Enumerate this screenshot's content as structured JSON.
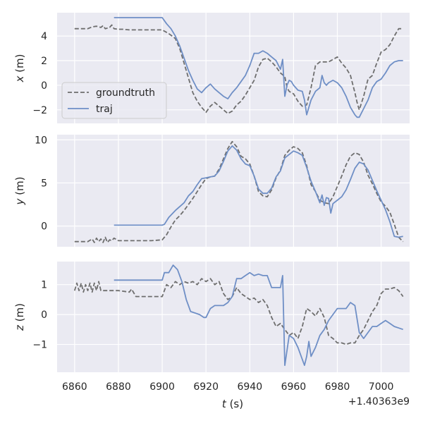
{
  "chart_data": {
    "type": "line",
    "x_offset_label": "+1.40363e9",
    "x_ticks": [
      "6860",
      "6880",
      "6900",
      "6920",
      "6940",
      "6960",
      "6980",
      "7000"
    ],
    "xlabel_var": "t",
    "xlabel_unit": " (s)",
    "legend": {
      "placement": "lower-left of top panel",
      "entries": [
        {
          "label": "groundtruth",
          "series": "groundtruth"
        },
        {
          "label": "traj",
          "series": "traj"
        }
      ]
    },
    "colors": {
      "groundtruth": "#6e6e6e",
      "traj": "#6f8fc6",
      "background": "#eaeaf2",
      "grid": "#ffffff"
    },
    "xlim": [
      6852,
      7013
    ],
    "panels": [
      {
        "ylabel_var": "x",
        "ylabel_unit": " (m)",
        "ylim": [
          -3.1,
          5.9
        ],
        "y_ticks": [
          4,
          2,
          0,
          -2
        ],
        "y_tick_labels": [
          "4",
          "2",
          "0",
          "−2"
        ],
        "series": [
          {
            "name": "groundtruth",
            "style": "dashed",
            "x": [
              6860,
              6866,
              6868,
              6870,
              6872,
              6873,
              6874,
              6876,
              6877,
              6878,
              6880,
              6882,
              6885,
              6890,
              6895,
              6900,
              6903,
              6906,
              6908,
              6910,
              6912,
              6914,
              6916,
              6918,
              6920,
              6922,
              6924,
              6926,
              6928,
              6930,
              6932,
              6934,
              6936,
              6938,
              6940,
              6942,
              6944,
              6946,
              6948,
              6950,
              6952,
              6954,
              6956,
              6957,
              6958,
              6960,
              6962,
              6964,
              6966,
              6968,
              6970,
              6972,
              6974,
              6976,
              6978,
              6980,
              6982,
              6984,
              6986,
              6988,
              6989,
              6990,
              6992,
              6994,
              6996,
              6998,
              7000,
              7002,
              7004,
              7006,
              7008,
              7010
            ],
            "y": [
              4.6,
              4.6,
              4.75,
              4.8,
              4.7,
              4.85,
              4.6,
              4.7,
              4.9,
              4.6,
              4.55,
              4.55,
              4.5,
              4.5,
              4.5,
              4.5,
              4.2,
              3.8,
              3.0,
              1.8,
              0.6,
              -0.6,
              -1.3,
              -1.8,
              -2.2,
              -1.7,
              -1.4,
              -1.7,
              -2.0,
              -2.3,
              -2.1,
              -1.6,
              -1.3,
              -0.8,
              -0.2,
              0.4,
              1.5,
              2.1,
              2.2,
              1.9,
              1.5,
              1.0,
              0.7,
              -0.2,
              -0.5,
              -0.7,
              -1.3,
              -1.7,
              -1.6,
              -0.2,
              1.6,
              1.9,
              1.9,
              1.9,
              2.1,
              2.3,
              1.8,
              1.4,
              0.8,
              -0.6,
              -1.4,
              -2.0,
              -0.9,
              0.5,
              0.8,
              1.8,
              2.7,
              2.9,
              3.3,
              4.0,
              4.6,
              4.6
            ]
          },
          {
            "name": "traj",
            "style": "solid",
            "x": [
              6878,
              6890,
              6900,
              6902,
              6904,
              6906,
              6908,
              6910,
              6912,
              6914,
              6916,
              6918,
              6920,
              6922,
              6924,
              6926,
              6928,
              6930,
              6932,
              6934,
              6936,
              6938,
              6940,
              6942,
              6944,
              6946,
              6948,
              6950,
              6952,
              6954,
              6955,
              6956,
              6957,
              6958,
              6959,
              6960,
              6962,
              6964,
              6965,
              6966,
              6967,
              6968,
              6970,
              6972,
              6973,
              6974,
              6975,
              6976,
              6978,
              6980,
              6982,
              6984,
              6986,
              6988,
              6989,
              6990,
              6992,
              6994,
              6996,
              6998,
              7000,
              7002,
              7004,
              7006,
              7008,
              7010
            ],
            "y": [
              5.5,
              5.5,
              5.5,
              5.0,
              4.6,
              4.0,
              3.2,
              2.2,
              1.2,
              0.4,
              -0.3,
              -0.6,
              -0.2,
              0.1,
              -0.3,
              -0.6,
              -0.9,
              -1.1,
              -0.6,
              -0.2,
              0.3,
              0.8,
              1.6,
              2.6,
              2.6,
              2.8,
              2.6,
              2.3,
              2.0,
              1.3,
              2.1,
              -0.9,
              0.0,
              0.4,
              0.3,
              0.0,
              -0.4,
              -0.5,
              -1.2,
              -2.4,
              -1.8,
              -1.2,
              -0.5,
              -0.2,
              0.8,
              0.2,
              0.0,
              0.2,
              0.4,
              0.2,
              -0.2,
              -0.9,
              -1.8,
              -2.4,
              -2.6,
              -2.6,
              -1.9,
              -1.2,
              -0.2,
              0.3,
              0.5,
              1.0,
              1.6,
              1.9,
              2.0,
              2.0
            ]
          }
        ]
      },
      {
        "ylabel_var": "y",
        "ylabel_unit": " (m)",
        "ylim": [
          -2.4,
          10.6
        ],
        "y_ticks": [
          10,
          5,
          0
        ],
        "y_tick_labels": [
          "10",
          "5",
          "0"
        ],
        "series": [
          {
            "name": "groundtruth",
            "style": "dashed",
            "x": [
              6860,
              6866,
              6868,
              6869,
              6870,
              6871,
              6872,
              6873,
              6874,
              6875,
              6876,
              6877,
              6878,
              6880,
              6885,
              6890,
              6895,
              6900,
              6902,
              6904,
              6906,
              6908,
              6910,
              6912,
              6914,
              6916,
              6918,
              6920,
              6922,
              6924,
              6926,
              6928,
              6930,
              6932,
              6934,
              6936,
              6938,
              6940,
              6942,
              6944,
              6946,
              6948,
              6950,
              6952,
              6954,
              6956,
              6958,
              6960,
              6962,
              6964,
              6966,
              6968,
              6970,
              6972,
              6974,
              6976,
              6978,
              6980,
              6982,
              6984,
              6986,
              6988,
              6990,
              6992,
              6994,
              6996,
              6998,
              7000,
              7002,
              7004,
              7006,
              7008,
              7010
            ],
            "y": [
              -1.8,
              -1.8,
              -1.5,
              -1.9,
              -1.4,
              -1.8,
              -1.5,
              -1.9,
              -1.3,
              -1.9,
              -1.6,
              -1.7,
              -1.4,
              -1.7,
              -1.7,
              -1.7,
              -1.7,
              -1.6,
              -1.0,
              -0.1,
              0.7,
              1.2,
              1.8,
              2.5,
              3.2,
              4.0,
              4.8,
              5.5,
              5.7,
              5.8,
              6.6,
              7.8,
              9.0,
              9.8,
              9.2,
              8.1,
              7.8,
              7.2,
              5.8,
              4.0,
              3.5,
              3.4,
              4.2,
              5.6,
              6.5,
              8.2,
              8.8,
              9.2,
              9.0,
              8.5,
              7.0,
              4.8,
              4.0,
              3.0,
              2.7,
              2.6,
              3.4,
              4.6,
              5.8,
              7.1,
              8.1,
              8.5,
              8.3,
              7.4,
              5.9,
              4.9,
              3.8,
              2.8,
              2.3,
              1.6,
              0.2,
              -1.3,
              -1.8
            ]
          },
          {
            "name": "traj",
            "style": "solid",
            "x": [
              6878,
              6890,
              6900,
              6901,
              6903,
              6906,
              6910,
              6912,
              6914,
              6916,
              6918,
              6920,
              6922,
              6924,
              6926,
              6928,
              6930,
              6932,
              6934,
              6936,
              6938,
              6940,
              6942,
              6944,
              6946,
              6948,
              6950,
              6952,
              6954,
              6956,
              6958,
              6960,
              6962,
              6964,
              6966,
              6968,
              6970,
              6972,
              6973,
              6974,
              6975,
              6976,
              6977,
              6978,
              6980,
              6982,
              6984,
              6986,
              6988,
              6990,
              6992,
              6994,
              6996,
              6998,
              7000,
              7002,
              7004,
              7006,
              7008,
              7010
            ],
            "y": [
              0.1,
              0.1,
              0.1,
              0.2,
              1.0,
              1.8,
              2.7,
              3.5,
              4.0,
              4.8,
              5.5,
              5.6,
              5.7,
              5.8,
              6.4,
              7.5,
              8.7,
              9.3,
              8.8,
              7.8,
              7.2,
              7.0,
              5.8,
              4.3,
              3.8,
              3.8,
              4.4,
              5.7,
              6.4,
              7.9,
              8.3,
              8.7,
              8.5,
              8.2,
              6.8,
              5.2,
              4.0,
              2.7,
              3.6,
              2.4,
              3.3,
              3.2,
              1.5,
              2.6,
              3.0,
              3.4,
              4.2,
              5.4,
              6.7,
              7.4,
              7.2,
              6.5,
              5.3,
              4.1,
              3.0,
              1.9,
              0.5,
              -1.2,
              -1.3,
              -1.2
            ]
          }
        ]
      },
      {
        "ylabel_var": "z",
        "ylabel_unit": " (m)",
        "ylim": [
          -1.93,
          1.77
        ],
        "y_ticks": [
          1,
          0,
          -1
        ],
        "y_tick_labels": [
          "1",
          "0",
          "−1"
        ],
        "series": [
          {
            "name": "groundtruth",
            "style": "dashed",
            "x": [
              6860,
              6861,
              6862,
              6863,
              6864,
              6865,
              6866,
              6867,
              6868,
              6869,
              6870,
              6871,
              6872,
              6875,
              6880,
              6885,
              6886,
              6888,
              6890,
              6895,
              6900,
              6902,
              6904,
              6906,
              6908,
              6910,
              6912,
              6914,
              6916,
              6918,
              6920,
              6922,
              6924,
              6926,
              6928,
              6930,
              6932,
              6934,
              6936,
              6938,
              6940,
              6942,
              6944,
              6946,
              6948,
              6950,
              6952,
              6954,
              6956,
              6958,
              6960,
              6962,
              6964,
              6966,
              6968,
              6970,
              6972,
              6974,
              6976,
              6978,
              6980,
              6982,
              6984,
              6986,
              6988,
              6990,
              6992,
              6994,
              6996,
              6998,
              7000,
              7002,
              7004,
              7006,
              7008,
              7010
            ],
            "y": [
              0.8,
              1.05,
              0.8,
              1.05,
              0.75,
              1.0,
              0.8,
              1.05,
              0.75,
              1.05,
              0.8,
              1.1,
              0.8,
              0.8,
              0.8,
              0.75,
              0.85,
              0.6,
              0.6,
              0.6,
              0.6,
              1.0,
              0.9,
              1.1,
              1.0,
              1.1,
              1.05,
              1.1,
              1.0,
              1.2,
              1.1,
              1.2,
              1.0,
              1.1,
              0.7,
              0.5,
              0.6,
              0.9,
              0.7,
              0.6,
              0.5,
              0.55,
              0.4,
              0.5,
              0.3,
              -0.1,
              -0.4,
              -0.3,
              -0.5,
              -0.7,
              -0.6,
              -0.8,
              -0.4,
              0.2,
              0.1,
              -0.05,
              0.2,
              -0.1,
              -0.7,
              -0.8,
              -0.95,
              -0.95,
              -1.0,
              -0.95,
              -0.95,
              -0.7,
              -0.5,
              -0.2,
              0.1,
              0.3,
              0.7,
              0.85,
              0.85,
              0.9,
              0.8,
              0.6
            ]
          },
          {
            "name": "traj",
            "style": "solid",
            "x": [
              6878,
              6890,
              6900,
              6901,
              6903,
              6905,
              6907,
              6909,
              6911,
              6913,
              6915,
              6917,
              6919,
              6920,
              6922,
              6924,
              6926,
              6928,
              6930,
              6932,
              6934,
              6936,
              6938,
              6940,
              6942,
              6944,
              6946,
              6948,
              6950,
              6952,
              6954,
              6955,
              6956,
              6957,
              6958,
              6960,
              6962,
              6964,
              6965,
              6966,
              6967,
              6968,
              6970,
              6972,
              6974,
              6976,
              6978,
              6980,
              6982,
              6984,
              6986,
              6988,
              6990,
              6992,
              6994,
              6996,
              6998,
              7000,
              7002,
              7004,
              7006,
              7008,
              7010
            ],
            "y": [
              1.15,
              1.15,
              1.15,
              1.4,
              1.4,
              1.65,
              1.5,
              1.1,
              0.5,
              0.1,
              0.05,
              0.0,
              -0.1,
              -0.1,
              0.2,
              0.3,
              0.3,
              0.3,
              0.4,
              0.6,
              1.2,
              1.2,
              1.3,
              1.4,
              1.3,
              1.35,
              1.3,
              1.3,
              0.9,
              0.9,
              0.9,
              1.3,
              -1.7,
              -1.2,
              -0.7,
              -0.8,
              -1.1,
              -1.5,
              -1.7,
              -1.4,
              -0.9,
              -1.4,
              -1.1,
              -0.7,
              -0.5,
              -0.2,
              0.0,
              0.2,
              0.2,
              0.2,
              0.4,
              0.3,
              -0.6,
              -0.8,
              -0.6,
              -0.4,
              -0.4,
              -0.3,
              -0.2,
              -0.3,
              -0.4,
              -0.45,
              -0.5
            ]
          }
        ]
      }
    ]
  }
}
